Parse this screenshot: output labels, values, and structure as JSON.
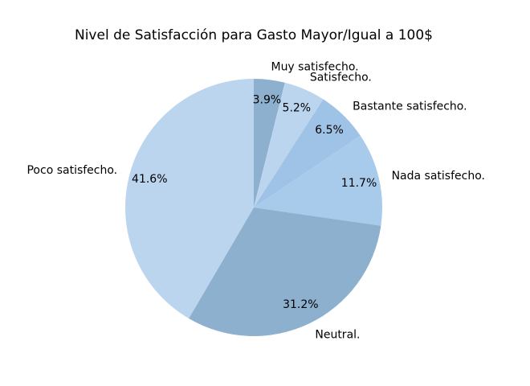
{
  "chart_data": {
    "type": "pie",
    "title": "Nivel de Satisfacción para Gasto Mayor/Igual a 100$",
    "start_angle_deg": 90,
    "direction": "clockwise",
    "slices": [
      {
        "label": "Muy satisfecho.",
        "value": 3.9,
        "pct_label": "3.9%",
        "color": "#8eb0cf"
      },
      {
        "label": "Satisfecho.",
        "value": 5.2,
        "pct_label": "5.2%",
        "color": "#bcd5ee"
      },
      {
        "label": "Bastante satisfecho.",
        "value": 6.5,
        "pct_label": "6.5%",
        "color": "#9fc3e6"
      },
      {
        "label": "Nada satisfecho.",
        "value": 11.7,
        "pct_label": "11.7%",
        "color": "#a8caeb"
      },
      {
        "label": "Neutral.",
        "value": 31.2,
        "pct_label": "31.2%",
        "color": "#8eb0cf"
      },
      {
        "label": "Poco satisfecho.",
        "value": 41.6,
        "pct_label": "41.6%",
        "color": "#bcd5ee"
      }
    ]
  }
}
